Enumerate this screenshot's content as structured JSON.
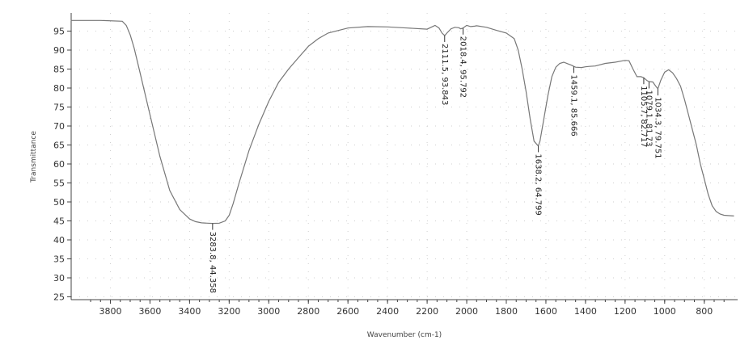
{
  "chart_data": {
    "type": "line",
    "xlabel": "Wavenumber (cm-1)",
    "ylabel": "Transmittance",
    "xlim": [
      4000,
      650
    ],
    "ylim": [
      25,
      98
    ],
    "grid": "dotted",
    "x_ticks": [
      3800,
      3600,
      3400,
      3200,
      3000,
      2800,
      2600,
      2400,
      2200,
      2000,
      1800,
      1600,
      1400,
      1200,
      1000,
      800
    ],
    "y_ticks": [
      25,
      30,
      35,
      40,
      45,
      50,
      55,
      60,
      65,
      70,
      75,
      80,
      85,
      90,
      95
    ],
    "series": [
      {
        "color": "#777777",
        "x": [
          4000,
          3850,
          3740,
          3720,
          3700,
          3680,
          3650,
          3600,
          3550,
          3500,
          3450,
          3400,
          3370,
          3340,
          3310,
          3283.8,
          3250,
          3220,
          3200,
          3180,
          3150,
          3100,
          3050,
          3000,
          2950,
          2900,
          2850,
          2800,
          2750,
          2700,
          2600,
          2500,
          2400,
          2300,
          2200,
          2160,
          2140,
          2125,
          2111.5,
          2100,
          2080,
          2060,
          2040,
          2030,
          2018.4,
          2000,
          1980,
          1960,
          1950,
          1900,
          1850,
          1800,
          1760,
          1740,
          1720,
          1700,
          1680,
          1660,
          1640,
          1638.2,
          1630,
          1610,
          1590,
          1570,
          1550,
          1530,
          1510,
          1490,
          1470,
          1459.1,
          1450,
          1420,
          1400,
          1380,
          1350,
          1300,
          1250,
          1200,
          1180,
          1160,
          1140,
          1120,
          1105.7,
          1090,
          1079.1,
          1060,
          1045,
          1034.3,
          1020,
          1000,
          980,
          960,
          940,
          920,
          900,
          880,
          860,
          840,
          820,
          800,
          780,
          760,
          740,
          720,
          700,
          680,
          650
        ],
        "y": [
          97.8,
          97.8,
          97.6,
          96.5,
          94,
          90.5,
          84,
          73,
          62,
          53,
          48,
          45.5,
          44.8,
          44.5,
          44.4,
          44.35,
          44.4,
          45,
          46.5,
          49.5,
          55,
          63.5,
          70.5,
          76.5,
          81.5,
          85,
          88,
          91,
          93,
          94.5,
          95.8,
          96.2,
          96.1,
          95.8,
          95.5,
          96.5,
          95.8,
          94.5,
          93.8,
          94.5,
          95.6,
          96,
          95.9,
          95.6,
          95.8,
          96.5,
          96.2,
          96.3,
          96.4,
          96,
          95.2,
          94.5,
          93,
          90,
          85,
          79,
          72,
          66,
          64.8,
          64.8,
          66,
          72,
          78,
          83,
          85.5,
          86.5,
          86.8,
          86.4,
          86,
          85.7,
          85.5,
          85.4,
          85.6,
          85.7,
          85.8,
          86.5,
          86.8,
          87.3,
          87.2,
          85,
          83,
          83,
          82.7,
          82,
          81.7,
          81.6,
          80.5,
          79.8,
          82,
          84.2,
          84.8,
          84,
          82.5,
          80.5,
          77,
          73,
          69,
          65,
          60,
          56,
          52,
          49,
          47.5,
          46.8,
          46.5,
          46.4,
          46.3
        ]
      }
    ],
    "annotations": [
      {
        "x": 3283.8,
        "y": 44.35,
        "text": "3283.8, 44.358"
      },
      {
        "x": 2111.5,
        "y": 93.84,
        "text": "2111.5, 93.843"
      },
      {
        "x": 2018.4,
        "y": 95.79,
        "text": "2018.4, 95.792"
      },
      {
        "x": 1638.2,
        "y": 64.8,
        "text": "1638.2, 64.799"
      },
      {
        "x": 1459.1,
        "y": 85.67,
        "text": "1459.1, 85.666"
      },
      {
        "x": 1105.7,
        "y": 82.72,
        "text": "1105.7, 82.717"
      },
      {
        "x": 1079.1,
        "y": 81.6,
        "text": "1079.1, 81.73"
      },
      {
        "x": 1034.3,
        "y": 79.75,
        "text": "1034.3, 79.751"
      }
    ]
  }
}
